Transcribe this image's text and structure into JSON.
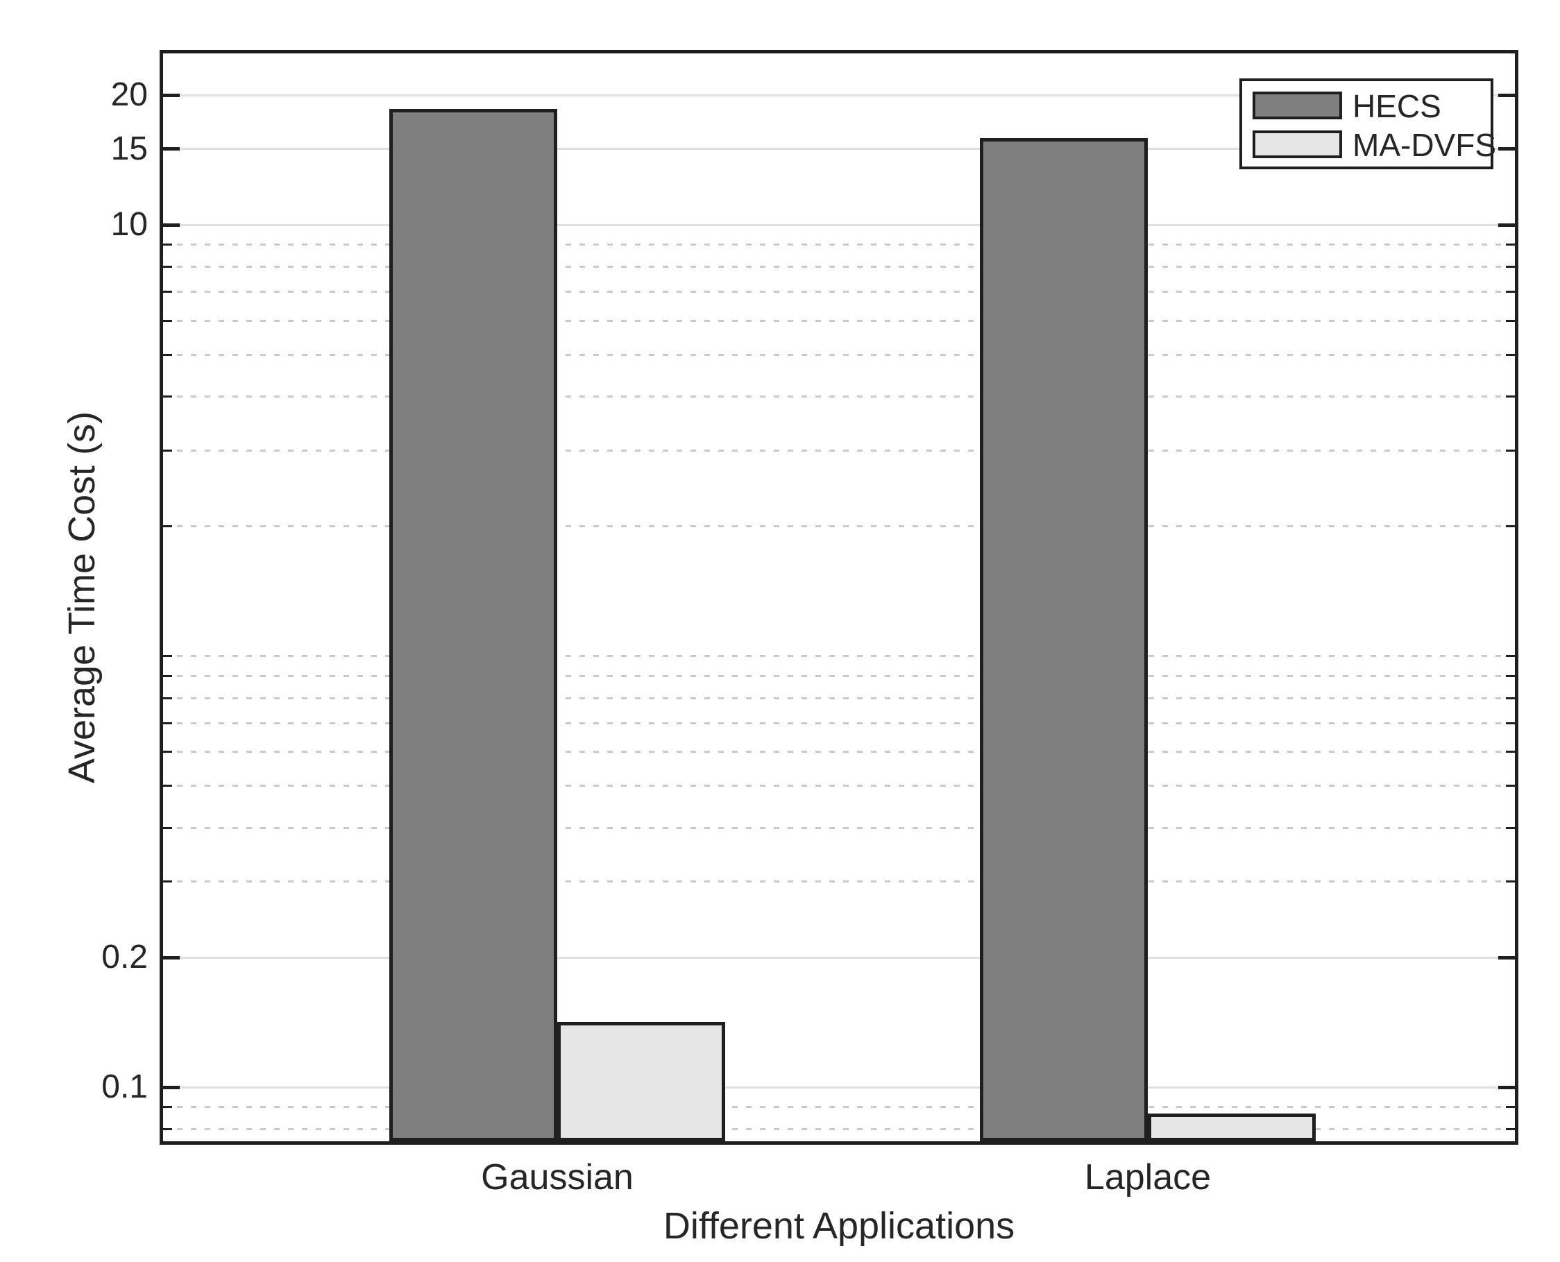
{
  "figure": {
    "background_color": "#ffffff",
    "axis_color": "#1f1f1f",
    "major_grid_color": "#e0e0e0",
    "minor_grid_color": "#c9c9c9"
  },
  "chart_data": {
    "type": "bar",
    "title": "",
    "xlabel": "Different Applications",
    "ylabel": "Average Time Cost (s)",
    "categories": [
      "Gaussian",
      "Laplace"
    ],
    "series": [
      {
        "name": "HECS",
        "color": "#7f7f7f",
        "values": [
          18.6,
          15.9
        ]
      },
      {
        "name": "MA-DVFS",
        "color": "#e6e6e6",
        "values": [
          0.142,
          0.087
        ]
      }
    ],
    "y_scale": "log",
    "ylim": [
      0.075,
      25
    ],
    "y_major_ticks": [
      20,
      15,
      10,
      0.2,
      0.1
    ],
    "y_tick_labels": [
      "20",
      "15",
      "10",
      "0.2",
      "0.1"
    ],
    "y_minor_ticks": [
      9,
      8,
      7,
      6,
      5,
      4,
      3,
      2,
      1,
      0.9,
      0.8,
      0.7,
      0.6,
      0.5,
      0.4,
      0.3,
      0.09,
      0.08
    ],
    "grid": "major solid, minor dotted, horizontal only",
    "bar_edge_color": "#1f1f1f",
    "legend": {
      "position": "top-right",
      "entries": [
        "HECS",
        "MA-DVFS"
      ]
    }
  }
}
